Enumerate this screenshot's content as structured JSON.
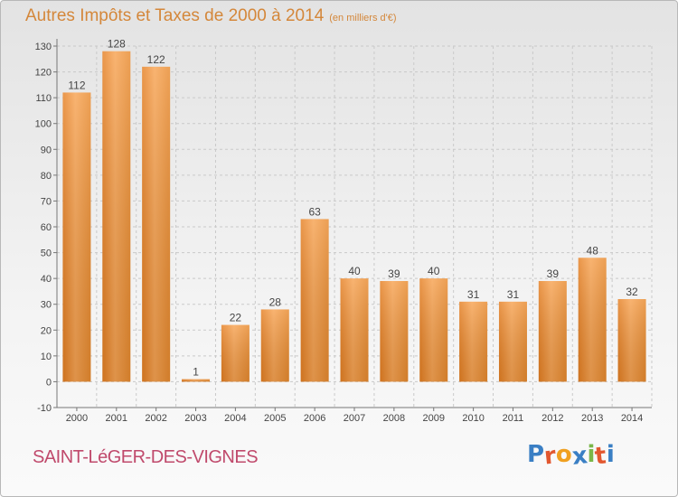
{
  "header": {
    "title": "Autres Impôts et Taxes de 2000 à 2014",
    "unit": "(en milliers d'€)"
  },
  "footer": {
    "commune": "SAINT-LéGER-DES-VIGNES",
    "logo_text": "Proxiti",
    "logo_colors": [
      "#3a7fc4",
      "#e2572f",
      "#f0a020",
      "#3a7fc4",
      "#7ab648",
      "#e2572f",
      "#3a7fc4"
    ]
  },
  "chart_data": {
    "type": "bar",
    "categories": [
      "2000",
      "2001",
      "2002",
      "2003",
      "2004",
      "2005",
      "2006",
      "2007",
      "2008",
      "2009",
      "2010",
      "2011",
      "2012",
      "2013",
      "2014"
    ],
    "values": [
      112,
      128,
      122,
      1,
      22,
      28,
      63,
      40,
      39,
      40,
      31,
      31,
      39,
      48,
      32
    ],
    "title": "Autres Impôts et Taxes de 2000 à 2014",
    "xlabel": "",
    "ylabel": "",
    "ylim": [
      -10,
      130
    ],
    "yticks": [
      -10,
      0,
      10,
      20,
      30,
      40,
      50,
      60,
      70,
      80,
      90,
      100,
      110,
      120,
      130
    ],
    "grid": true,
    "bar_color": "#f0943a"
  }
}
